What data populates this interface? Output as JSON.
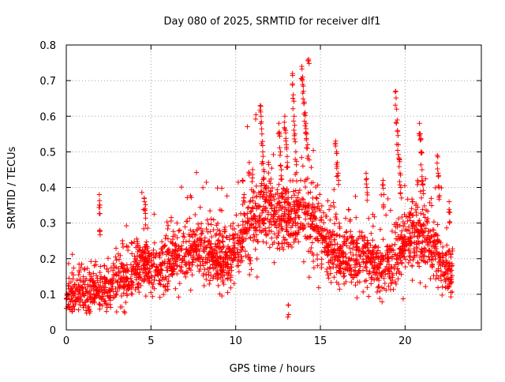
{
  "chart_data": {
    "type": "scatter",
    "title": "Day 080 of 2025, SRMTID for receiver dlf1",
    "xlabel": "GPS time / hours",
    "ylabel": "SRMTID / TECUs",
    "xlim": [
      0,
      24.5
    ],
    "ylim": [
      0,
      0.8
    ],
    "xticks": [
      0,
      5,
      10,
      15,
      20
    ],
    "yticks": [
      0,
      0.1,
      0.2,
      0.3,
      0.4,
      0.5,
      0.6,
      0.7,
      0.8
    ],
    "xtick_labels": [
      "0",
      "5",
      "10",
      "15",
      "20"
    ],
    "ytick_labels": [
      "0",
      "0.1",
      "0.2",
      "0.3",
      "0.4",
      "0.5",
      "0.6",
      "0.7",
      "0.8"
    ],
    "grid": true,
    "marker": "+",
    "series": [
      {
        "name": "SRMTID",
        "color": "#ff0000",
        "trend_knots": {
          "x": [
            0,
            0.5,
            1.0,
            1.5,
            2.0,
            2.5,
            3.0,
            3.5,
            4.0,
            4.5,
            5.0,
            5.5,
            6.0,
            6.5,
            7.0,
            7.5,
            8.0,
            8.5,
            9.0,
            9.5,
            10.0,
            10.5,
            11.0,
            11.5,
            12.0,
            12.5,
            13.0,
            13.5,
            14.0,
            14.5,
            15.0,
            15.5,
            16.0,
            16.5,
            17.0,
            17.5,
            18.0,
            18.5,
            19.0,
            19.5,
            20.0,
            20.5,
            21.0,
            21.5,
            22.0,
            22.5,
            22.8
          ],
          "y": [
            0.09,
            0.1,
            0.11,
            0.1,
            0.11,
            0.12,
            0.14,
            0.15,
            0.17,
            0.2,
            0.18,
            0.17,
            0.19,
            0.2,
            0.22,
            0.23,
            0.22,
            0.21,
            0.2,
            0.2,
            0.22,
            0.27,
            0.3,
            0.32,
            0.33,
            0.3,
            0.32,
            0.33,
            0.34,
            0.3,
            0.27,
            0.24,
            0.21,
            0.21,
            0.2,
            0.21,
            0.19,
            0.17,
            0.18,
            0.2,
            0.25,
            0.27,
            0.26,
            0.24,
            0.2,
            0.17,
            0.16
          ]
        },
        "spread": 0.06,
        "num_points": 2600,
        "burst_points": {
          "x": [
            1.95,
            1.96,
            1.97,
            4.6,
            4.65,
            10.4,
            10.5,
            11.45,
            11.5,
            11.55,
            11.6,
            11.65,
            12.55,
            12.6,
            12.65,
            12.7,
            12.9,
            12.95,
            13.0,
            13.05,
            13.35,
            13.4,
            13.45,
            13.5,
            13.55,
            13.9,
            13.95,
            14.0,
            14.05,
            14.1,
            14.15,
            14.2,
            14.25,
            15.9,
            15.95,
            16.0,
            16.05,
            17.7,
            17.75,
            18.7,
            18.75,
            19.45,
            19.5,
            19.55,
            19.6,
            19.65,
            19.7,
            19.75,
            20.85,
            20.9,
            20.95,
            21.0,
            21.05,
            21.9,
            21.95,
            22.0,
            22.6,
            22.65,
            13.1,
            14.3,
            10.8,
            11.0
          ],
          "y": [
            0.38,
            0.35,
            0.28,
            0.37,
            0.34,
            0.42,
            0.38,
            0.63,
            0.6,
            0.55,
            0.5,
            0.45,
            0.58,
            0.55,
            0.5,
            0.45,
            0.6,
            0.56,
            0.52,
            0.47,
            0.72,
            0.66,
            0.6,
            0.55,
            0.5,
            0.74,
            0.71,
            0.67,
            0.64,
            0.61,
            0.58,
            0.55,
            0.52,
            0.53,
            0.5,
            0.47,
            0.44,
            0.44,
            0.4,
            0.42,
            0.38,
            0.67,
            0.62,
            0.56,
            0.52,
            0.48,
            0.44,
            0.4,
            0.58,
            0.55,
            0.5,
            0.45,
            0.41,
            0.49,
            0.44,
            0.4,
            0.36,
            0.33,
            0.07,
            0.76,
            0.47,
            0.45
          ]
        }
      }
    ]
  }
}
